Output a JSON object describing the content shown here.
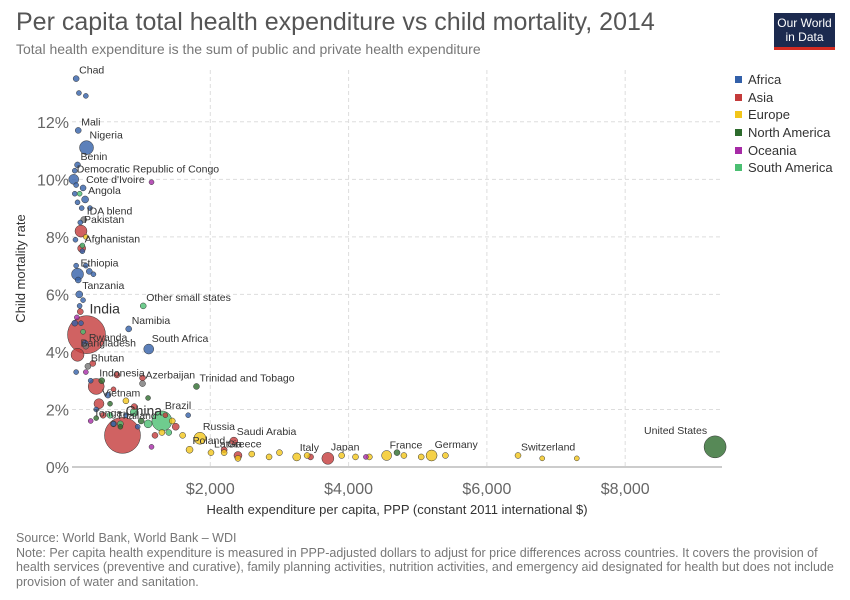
{
  "title": "Per capita total health expenditure vs child mortality, 2014",
  "subtitle": "Total health expenditure is the sum of public and private health expenditure",
  "logo": {
    "line1": "Our World",
    "line2": "in Data"
  },
  "source": "Source: World Bank, World Bank – WDI",
  "note": "Note: Per capita health expenditure is measured in PPP-adjusted dollars to adjust for price differences across countries. It covers the provision of health services (preventive and curative), family planning activities, nutrition activities, and emergency aid designated for health but does not include provision of water and sanitation.",
  "chart_data": {
    "type": "scatter",
    "xlabel": "Health expenditure per capita, PPP (constant 2011 international $)",
    "ylabel": "Child mortality rate",
    "xlim": [
      0,
      9400
    ],
    "ylim": [
      0,
      13.8
    ],
    "x_ticks": [
      2000,
      4000,
      6000,
      8000
    ],
    "x_tick_labels": [
      "$2,000",
      "$4,000",
      "$6,000",
      "$8,000"
    ],
    "y_ticks": [
      0,
      2,
      4,
      6,
      8,
      10,
      12
    ],
    "y_tick_labels": [
      "0%",
      "2%",
      "4%",
      "6%",
      "8%",
      "10%",
      "12%"
    ],
    "grid": true,
    "legend_position": "right",
    "legend": [
      {
        "name": "Africa",
        "color": "#3360a9"
      },
      {
        "name": "Asia",
        "color": "#c43b3b"
      },
      {
        "name": "Europe",
        "color": "#f2c51a"
      },
      {
        "name": "North America",
        "color": "#2d6b2d"
      },
      {
        "name": "Oceania",
        "color": "#a62aa6"
      },
      {
        "name": "South America",
        "color": "#4bbf72"
      }
    ],
    "series": [
      {
        "name": "Africa",
        "color": "#3360a9",
        "points": [
          {
            "x": 60,
            "y": 13.5,
            "label": "Chad",
            "r": 3
          },
          {
            "x": 90,
            "y": 11.7,
            "label": "Mali",
            "r": 3
          },
          {
            "x": 210,
            "y": 11.1,
            "label": "Nigeria",
            "r": 7
          },
          {
            "x": 80,
            "y": 10.5,
            "label": "Benin",
            "r": 3
          },
          {
            "x": 25,
            "y": 10.0,
            "label": "Democratic Republic of Congo",
            "r": 5
          },
          {
            "x": 160,
            "y": 9.7,
            "label": "Cote d'Ivoire",
            "r": 3
          },
          {
            "x": 190,
            "y": 9.3,
            "label": "Angola",
            "r": 3.5
          },
          {
            "x": 80,
            "y": 6.7,
            "label": "Ethiopia",
            "r": 6
          },
          {
            "x": 105,
            "y": 6.0,
            "label": "Tanzania",
            "r": 3.5
          },
          {
            "x": 820,
            "y": 4.8,
            "label": "Namibia",
            "r": 3
          },
          {
            "x": 1110,
            "y": 4.1,
            "label": "South Africa",
            "r": 5
          },
          {
            "x": 100,
            "y": 13.0,
            "r": 2.5
          },
          {
            "x": 200,
            "y": 12.9,
            "r": 2.5
          },
          {
            "x": 40,
            "y": 10.3,
            "r": 2.5
          },
          {
            "x": 60,
            "y": 9.8,
            "r": 2.5
          },
          {
            "x": 40,
            "y": 9.5,
            "r": 2.5
          },
          {
            "x": 80,
            "y": 9.2,
            "r": 2.5
          },
          {
            "x": 140,
            "y": 9.0,
            "r": 2.5
          },
          {
            "x": 260,
            "y": 9.0,
            "r": 2.5
          },
          {
            "x": 120,
            "y": 8.5,
            "r": 2.5
          },
          {
            "x": 50,
            "y": 7.9,
            "r": 2.5
          },
          {
            "x": 150,
            "y": 7.5,
            "r": 2.5
          },
          {
            "x": 200,
            "y": 7.0,
            "r": 2.5
          },
          {
            "x": 250,
            "y": 6.8,
            "r": 3
          },
          {
            "x": 310,
            "y": 6.7,
            "r": 2.5
          },
          {
            "x": 60,
            "y": 7.0,
            "r": 2.5
          },
          {
            "x": 90,
            "y": 6.5,
            "r": 3
          },
          {
            "x": 160,
            "y": 5.8,
            "r": 2.5
          },
          {
            "x": 110,
            "y": 5.6,
            "r": 2.5
          },
          {
            "x": 40,
            "y": 5.0,
            "r": 3
          },
          {
            "x": 130,
            "y": 5.0,
            "r": 2.5
          },
          {
            "x": 190,
            "y": 4.3,
            "r": 3
          },
          {
            "x": 60,
            "y": 3.3,
            "r": 2.5
          },
          {
            "x": 270,
            "y": 3.0,
            "r": 2.5
          },
          {
            "x": 520,
            "y": 2.5,
            "r": 3
          },
          {
            "x": 600,
            "y": 1.5,
            "r": 2.5
          },
          {
            "x": 780,
            "y": 1.8,
            "r": 2.5
          },
          {
            "x": 950,
            "y": 1.4,
            "r": 2.5
          },
          {
            "x": 1680,
            "y": 1.8,
            "r": 2.5
          },
          {
            "x": 350,
            "y": 2.0,
            "r": 2.5
          }
        ]
      },
      {
        "name": "Asia",
        "color": "#c43b3b",
        "points": [
          {
            "x": 130,
            "y": 8.2,
            "label": "Pakistan",
            "r": 6
          },
          {
            "x": 140,
            "y": 7.6,
            "label": "Afghanistan",
            "r": 4
          },
          {
            "x": 210,
            "y": 4.6,
            "label": "India",
            "r": 19
          },
          {
            "x": 80,
            "y": 3.9,
            "label": "Bangladesh",
            "r": 6.5
          },
          {
            "x": 350,
            "y": 2.8,
            "label": "Indonesia",
            "r": 8
          },
          {
            "x": 390,
            "y": 2.2,
            "label": "Vietnam",
            "r": 5
          },
          {
            "x": 730,
            "y": 1.1,
            "label": "China",
            "r": 18
          },
          {
            "x": 2340,
            "y": 0.9,
            "label": "Saudi Arabia",
            "r": 4
          },
          {
            "x": 3700,
            "y": 0.3,
            "label": "Japan",
            "r": 6
          },
          {
            "x": 900,
            "y": 2.1,
            "r": 3
          },
          {
            "x": 1020,
            "y": 3.1,
            "r": 3
          },
          {
            "x": 650,
            "y": 3.2,
            "r": 3
          },
          {
            "x": 1500,
            "y": 1.4,
            "r": 3.5
          },
          {
            "x": 600,
            "y": 2.7,
            "r": 2.5
          },
          {
            "x": 2400,
            "y": 0.4,
            "r": 4
          },
          {
            "x": 2200,
            "y": 0.6,
            "r": 3
          },
          {
            "x": 120,
            "y": 5.4,
            "r": 3
          },
          {
            "x": 300,
            "y": 3.6,
            "r": 3
          },
          {
            "x": 450,
            "y": 1.8,
            "r": 3
          },
          {
            "x": 1200,
            "y": 1.1,
            "r": 3
          },
          {
            "x": 1350,
            "y": 1.8,
            "r": 2.5
          },
          {
            "x": 3450,
            "y": 0.35,
            "r": 3
          }
        ]
      },
      {
        "name": "Europe",
        "color": "#f2c51a",
        "points": [
          {
            "x": 1700,
            "y": 0.6,
            "label": "Poland",
            "r": 3.5
          },
          {
            "x": 1850,
            "y": 1.0,
            "label": "Russia",
            "r": 6
          },
          {
            "x": 2010,
            "y": 0.5,
            "label": "Latvia",
            "r": 3
          },
          {
            "x": 2200,
            "y": 0.5,
            "label": "Greece",
            "r": 3
          },
          {
            "x": 3250,
            "y": 0.35,
            "label": "Italy",
            "r": 4
          },
          {
            "x": 4550,
            "y": 0.4,
            "label": "France",
            "r": 5
          },
          {
            "x": 5200,
            "y": 0.4,
            "label": "Germany",
            "r": 5.5
          },
          {
            "x": 6450,
            "y": 0.4,
            "label": "Switzerland",
            "r": 3
          },
          {
            "x": 1450,
            "y": 1.6,
            "r": 3
          },
          {
            "x": 1600,
            "y": 1.1,
            "r": 3
          },
          {
            "x": 2600,
            "y": 0.45,
            "r": 3
          },
          {
            "x": 2850,
            "y": 0.35,
            "r": 3
          },
          {
            "x": 3000,
            "y": 0.5,
            "r": 3
          },
          {
            "x": 3400,
            "y": 0.4,
            "r": 3
          },
          {
            "x": 3900,
            "y": 0.4,
            "r": 3
          },
          {
            "x": 4100,
            "y": 0.35,
            "r": 3
          },
          {
            "x": 4300,
            "y": 0.35,
            "r": 3
          },
          {
            "x": 4800,
            "y": 0.4,
            "r": 3
          },
          {
            "x": 5050,
            "y": 0.35,
            "r": 3
          },
          {
            "x": 5400,
            "y": 0.4,
            "r": 3
          },
          {
            "x": 6800,
            "y": 0.3,
            "r": 2.5
          },
          {
            "x": 7300,
            "y": 0.3,
            "r": 2.5
          },
          {
            "x": 1300,
            "y": 1.2,
            "r": 3
          },
          {
            "x": 780,
            "y": 2.3,
            "r": 3
          },
          {
            "x": 200,
            "y": 8.0,
            "r": 2.5
          },
          {
            "x": 2400,
            "y": 0.3,
            "r": 3
          }
        ]
      },
      {
        "name": "North America",
        "color": "#2d6b2d",
        "points": [
          {
            "x": 9300,
            "y": 0.7,
            "label": "United States",
            "r": 11
          },
          {
            "x": 1800,
            "y": 2.8,
            "label": "Trinidad and Tobago",
            "r": 3
          },
          {
            "x": 1000,
            "y": 1.6,
            "r": 3
          },
          {
            "x": 430,
            "y": 3.0,
            "r": 3
          },
          {
            "x": 350,
            "y": 1.7,
            "r": 2.5
          },
          {
            "x": 4700,
            "y": 0.5,
            "r": 3
          },
          {
            "x": 550,
            "y": 2.2,
            "r": 2.5
          },
          {
            "x": 1100,
            "y": 2.4,
            "r": 2.5
          },
          {
            "x": 700,
            "y": 1.4,
            "r": 2.5
          }
        ]
      },
      {
        "name": "Oceania",
        "color": "#a62aa6",
        "points": [
          {
            "x": 1150,
            "y": 9.9,
            "r": 2.5
          },
          {
            "x": 270,
            "y": 1.6,
            "label": "Tonga",
            "r": 2.5
          },
          {
            "x": 70,
            "y": 5.2,
            "r": 2.5
          },
          {
            "x": 4250,
            "y": 0.35,
            "r": 2.5
          },
          {
            "x": 200,
            "y": 3.3,
            "r": 2.5
          },
          {
            "x": 1150,
            "y": 0.7,
            "r": 2.5
          }
        ]
      },
      {
        "name": "South America",
        "color": "#4bbf72",
        "points": [
          {
            "x": 1030,
            "y": 5.6,
            "label": "Other small states",
            "r": 3
          },
          {
            "x": 1300,
            "y": 1.6,
            "label": "Brazil",
            "r": 10
          },
          {
            "x": 110,
            "y": 9.5,
            "r": 2.5
          },
          {
            "x": 150,
            "y": 7.7,
            "r": 2.5
          },
          {
            "x": 160,
            "y": 4.7,
            "r": 2.5
          },
          {
            "x": 1100,
            "y": 1.5,
            "r": 4
          },
          {
            "x": 1400,
            "y": 1.2,
            "r": 3
          },
          {
            "x": 900,
            "y": 1.9,
            "r": 4
          },
          {
            "x": 700,
            "y": 1.5,
            "r": 3
          },
          {
            "x": 550,
            "y": 1.8,
            "r": 3
          }
        ]
      },
      {
        "points": [
          {
            "x": 170,
            "y": 8.6,
            "label": "IDA blend",
            "r": 3
          },
          {
            "x": 200,
            "y": 4.2,
            "label": "Rwanda",
            "r": 3
          },
          {
            "x": 230,
            "y": 3.5,
            "label": "Bhutan",
            "r": 3
          },
          {
            "x": 1020,
            "y": 2.9,
            "label": "Azerbaijan",
            "r": 3
          },
          {
            "x": 600,
            "y": 1.5,
            "label": "Thailand",
            "r": 3
          }
        ]
      }
    ]
  }
}
